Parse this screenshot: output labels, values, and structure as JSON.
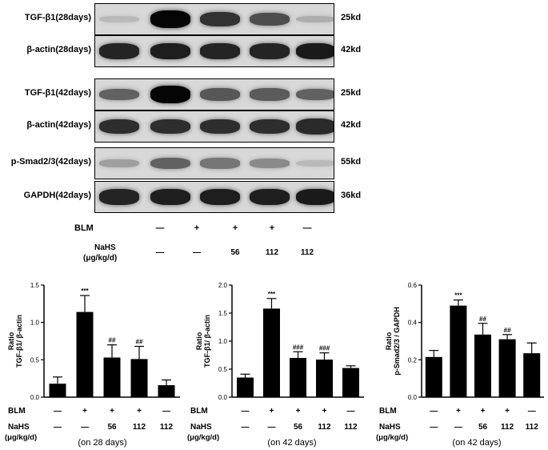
{
  "blots": [
    {
      "label": "TGF-β1(28days)",
      "kd": "25kd",
      "intensity": [
        0.12,
        1.0,
        0.78,
        0.65,
        0.18
      ]
    },
    {
      "label": "β-actin(28days)",
      "kd": "42kd",
      "intensity": [
        0.85,
        0.88,
        0.85,
        0.85,
        0.9
      ]
    },
    {
      "label": "TGF-β1(42days)",
      "kd": "25kd",
      "intensity": [
        0.55,
        1.0,
        0.6,
        0.58,
        0.55
      ]
    },
    {
      "label": "β-actin(42days)",
      "kd": "42kd",
      "intensity": [
        0.8,
        0.8,
        0.8,
        0.8,
        0.82
      ]
    },
    {
      "label": "p-Smad2/3(42days)",
      "kd": "55kd",
      "intensity": [
        0.25,
        0.55,
        0.45,
        0.35,
        0.12
      ]
    },
    {
      "label": "GAPDH(42days)",
      "kd": "36kd",
      "intensity": [
        0.85,
        0.88,
        0.88,
        0.88,
        0.9
      ]
    }
  ],
  "treatment_table": {
    "blm_label": "BLM",
    "nahs_label": "NaHS",
    "nahs_unit": "(μg/kg/d)",
    "blm": [
      "—",
      "+",
      "+",
      "+",
      "—"
    ],
    "nahs": [
      "—",
      "—",
      "56",
      "112",
      "112"
    ]
  },
  "chart_data": [
    {
      "type": "bar",
      "ylabel": "Ratio\nTGF-β1/ β-actin",
      "ylim": [
        0,
        1.5
      ],
      "yticks": [
        "0.0",
        "0.5",
        "1.0",
        "1.5"
      ],
      "values": [
        0.18,
        1.14,
        0.53,
        0.51,
        0.16
      ],
      "errors": [
        0.09,
        0.22,
        0.17,
        0.17,
        0.07
      ],
      "annotations": [
        "",
        "***",
        "##",
        "##",
        ""
      ],
      "blm": [
        "—",
        "+",
        "+",
        "+",
        "—"
      ],
      "nahs": [
        "—",
        "—",
        "56",
        "112",
        "112"
      ],
      "blm_label": "BLM",
      "nahs_label": "NaHS",
      "nahs_unit": "(μg/kg/d)",
      "caption": "(on 28 days)"
    },
    {
      "type": "bar",
      "ylabel": "Ratio\nTGF-β1/ β-actin",
      "ylim": [
        0,
        2.0
      ],
      "yticks": [
        "0.0",
        "0.5",
        "1.0",
        "1.5",
        "2.0"
      ],
      "values": [
        0.35,
        1.58,
        0.7,
        0.67,
        0.52
      ],
      "errors": [
        0.06,
        0.18,
        0.11,
        0.12,
        0.04
      ],
      "annotations": [
        "",
        "***",
        "###",
        "###",
        ""
      ],
      "blm": [
        "—",
        "+",
        "+",
        "+",
        "—"
      ],
      "nahs": [
        "—",
        "—",
        "56",
        "112",
        "112"
      ],
      "blm_label": "BLM",
      "nahs_label": "NaHS",
      "nahs_unit": "(μg/kg/d)",
      "caption": "(on 42 days)"
    },
    {
      "type": "bar",
      "ylabel": "Ratio\np-Smad2/3 / GAPDH",
      "ylim": [
        0,
        0.6
      ],
      "yticks": [
        "0.0",
        "0.2",
        "0.4",
        "0.6"
      ],
      "values": [
        0.215,
        0.49,
        0.335,
        0.31,
        0.235
      ],
      "errors": [
        0.035,
        0.03,
        0.06,
        0.025,
        0.055
      ],
      "annotations": [
        "",
        "***",
        "##",
        "##",
        ""
      ],
      "blm": [
        "—",
        "+",
        "+",
        "+",
        "—"
      ],
      "nahs": [
        "—",
        "—",
        "56",
        "112",
        "112"
      ],
      "blm_label": "BLM",
      "nahs_label": "NaHS",
      "nahs_unit": "(μg/kg/d)",
      "caption": "(on 42 days)"
    }
  ]
}
